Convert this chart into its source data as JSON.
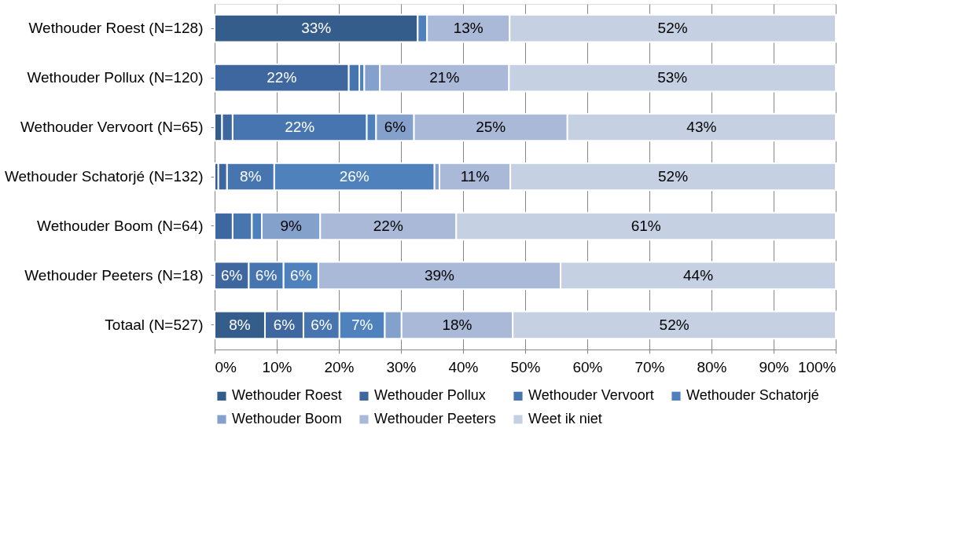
{
  "chart_data": {
    "type": "bar",
    "orientation": "horizontal",
    "stacked": true,
    "categories": [
      "Wethouder Roest (N=128)",
      "Wethouder Pollux (N=120)",
      "Wethouder Vervoort (N=65)",
      "Wethouder Schatorjé (N=132)",
      "Wethouder Boom (N=64)",
      "Wethouder Peeters (N=18)",
      "Totaal (N=527)"
    ],
    "series": [
      {
        "name": "Wethouder Roest",
        "color": "#355d8c",
        "values": [
          32.7,
          null,
          1.2,
          0.6,
          null,
          null,
          8.1
        ],
        "value_labels": [
          "33%",
          null,
          null,
          null,
          null,
          null,
          "8%"
        ]
      },
      {
        "name": "Wethouder Pollux",
        "color": "#3e67a0",
        "values": [
          null,
          21.6,
          1.7,
          1.4,
          2.9,
          5.5,
          6.2
        ],
        "value_labels": [
          null,
          "22%",
          null,
          null,
          null,
          "6%",
          "6%"
        ]
      },
      {
        "name": "Wethouder Vervoort",
        "color": "#4675b0",
        "values": [
          null,
          1.7,
          21.6,
          7.6,
          3.1,
          5.6,
          5.8
        ],
        "value_labels": [
          null,
          null,
          "22%",
          "8%",
          null,
          "6%",
          "6%"
        ]
      },
      {
        "name": "Wethouder Schatorjé",
        "color": "#4f81bd",
        "values": [
          1.5,
          0.8,
          1.5,
          25.8,
          1.6,
          5.6,
          7.3
        ],
        "value_labels": [
          null,
          null,
          null,
          "26%",
          null,
          "6%",
          "7%"
        ]
      },
      {
        "name": "Wethouder Boom",
        "color": "#84a1cc",
        "values": [
          null,
          2.5,
          6.1,
          0.8,
          9.4,
          null,
          2.7
        ],
        "value_labels": [
          null,
          null,
          "6%",
          null,
          "9%",
          null,
          null
        ]
      },
      {
        "name": "Wethouder Peeters",
        "color": "#a9b9d7",
        "values": [
          13.3,
          20.8,
          24.7,
          11.4,
          21.9,
          39.0,
          17.9
        ],
        "value_labels": [
          "13%",
          "21%",
          "25%",
          "11%",
          "22%",
          "39%",
          "18%"
        ]
      },
      {
        "name": "Weet ik niet",
        "color": "#c5d0e3",
        "values": [
          52.5,
          52.6,
          43.2,
          52.4,
          61.1,
          44.3,
          52.0
        ],
        "value_labels": [
          "52%",
          "53%",
          "43%",
          "52%",
          "61%",
          "44%",
          "52%"
        ]
      }
    ],
    "xlim": [
      0,
      100
    ],
    "xticks": [
      {
        "value": 0,
        "label": "0%"
      },
      {
        "value": 10,
        "label": "10%"
      },
      {
        "value": 20,
        "label": "20%"
      },
      {
        "value": 30,
        "label": "30%"
      },
      {
        "value": 40,
        "label": "40%"
      },
      {
        "value": 50,
        "label": "50%"
      },
      {
        "value": 60,
        "label": "60%"
      },
      {
        "value": 70,
        "label": "70%"
      },
      {
        "value": 80,
        "label": "80%"
      },
      {
        "value": 90,
        "label": "90%"
      },
      {
        "value": 100,
        "label": "100%"
      }
    ],
    "grid": "x",
    "legend": "bottom"
  }
}
